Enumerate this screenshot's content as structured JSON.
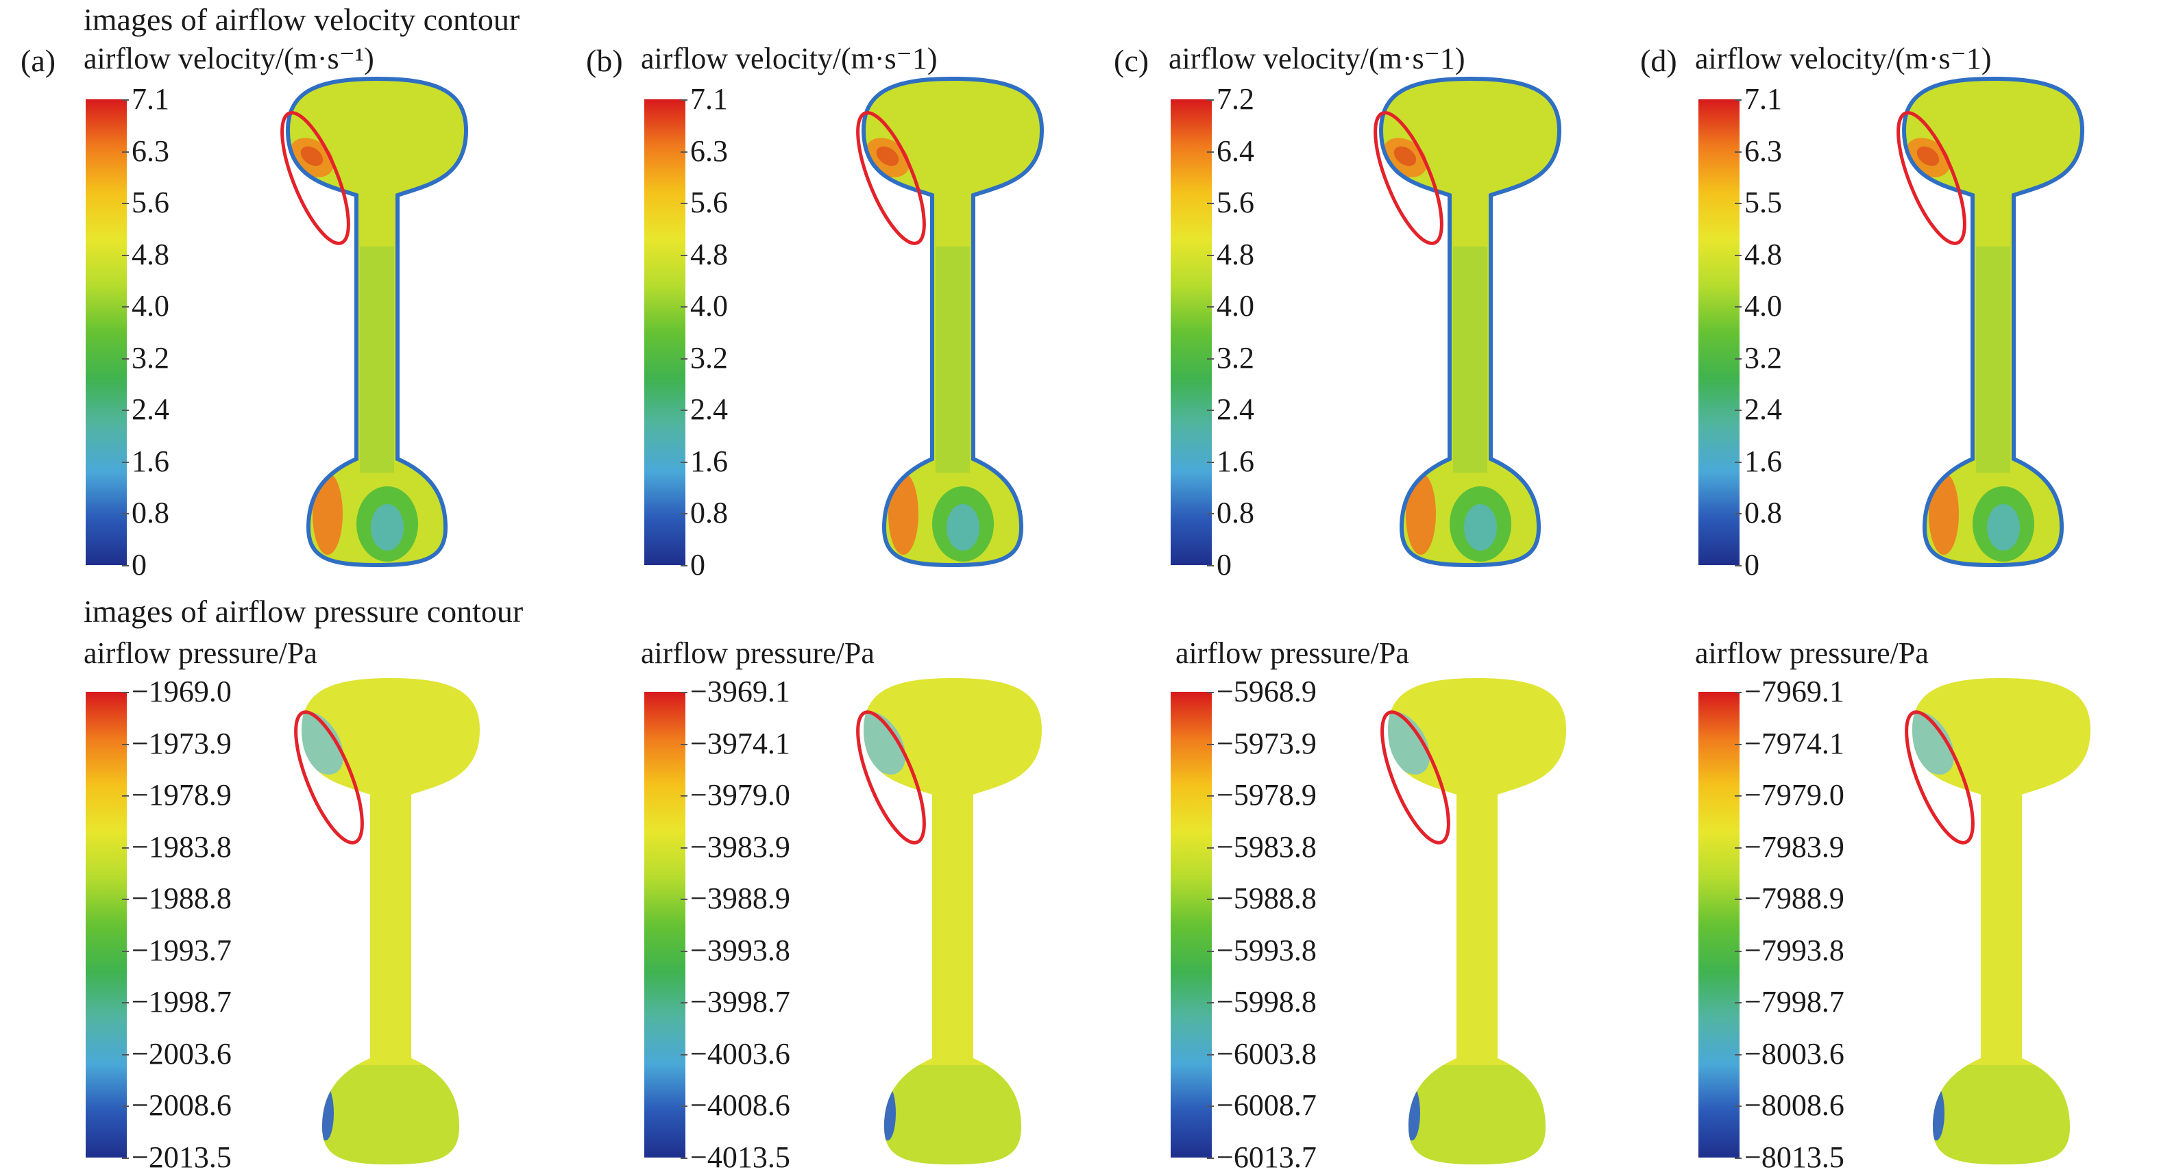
{
  "section_titles": {
    "velocity": "images of airflow velocity contour",
    "pressure": "images of airflow pressure contour"
  },
  "velocity_row": {
    "panels": [
      {
        "label": "(a)",
        "axis_title": "airflow velocity/(m·s⁻¹)",
        "ticks": [
          "7.1",
          "6.3",
          "5.6",
          "4.8",
          "4.0",
          "3.2",
          "2.4",
          "1.6",
          "0.8",
          "0"
        ]
      },
      {
        "label": "(b)",
        "axis_title": "airflow velocity/(m·s⁻1)",
        "ticks": [
          "7.1",
          "6.3",
          "5.6",
          "4.8",
          "4.0",
          "3.2",
          "2.4",
          "1.6",
          "0.8",
          "0"
        ]
      },
      {
        "label": "(c)",
        "axis_title": "airflow velocity/(m·s⁻1)",
        "ticks": [
          "7.2",
          "6.4",
          "5.6",
          "4.8",
          "4.0",
          "3.2",
          "2.4",
          "1.6",
          "0.8",
          "0"
        ]
      },
      {
        "label": "(d)",
        "axis_title": "airflow velocity/(m·s⁻1)",
        "ticks": [
          "7.1",
          "6.3",
          "5.5",
          "4.8",
          "4.0",
          "3.2",
          "2.4",
          "1.6",
          "0.8",
          "0"
        ]
      }
    ]
  },
  "pressure_row": {
    "panels": [
      {
        "axis_title": "airflow pressure/Pa",
        "ticks": [
          "−1969.0",
          "−1973.9",
          "−1978.9",
          "−1983.8",
          "−1988.8",
          "−1993.7",
          "−1998.7",
          "−2003.6",
          "−2008.6",
          "−2013.5"
        ]
      },
      {
        "axis_title": "airflow pressure/Pa",
        "ticks": [
          "−3969.1",
          "−3974.1",
          "−3979.0",
          "−3983.9",
          "−3988.9",
          "−3993.8",
          "−3998.7",
          "−4003.6",
          "−4008.6",
          "−4013.5"
        ]
      },
      {
        "axis_title": "airflow pressure/Pa",
        "ticks": [
          "−5968.9",
          "−5973.9",
          "−5978.9",
          "−5983.8",
          "−5988.8",
          "−5993.8",
          "−5998.8",
          "−6003.8",
          "−6008.7",
          "−6013.7"
        ]
      },
      {
        "axis_title": "airflow pressure/Pa",
        "ticks": [
          "−7969.1",
          "−7974.1",
          "−7979.0",
          "−7983.9",
          "−7988.9",
          "−7993.8",
          "−7998.7",
          "−8003.6",
          "−8008.6",
          "−8013.5"
        ]
      }
    ]
  },
  "colors": {
    "highlight_ellipse": "#e3222a",
    "colormap": [
      "#d7191c",
      "#f07a1d",
      "#f5c21b",
      "#e8e62c",
      "#b6dc2e",
      "#66c232",
      "#3fb34f",
      "#52b4a2",
      "#4aa8d8",
      "#2b5ab8",
      "#1f2f8c"
    ]
  }
}
